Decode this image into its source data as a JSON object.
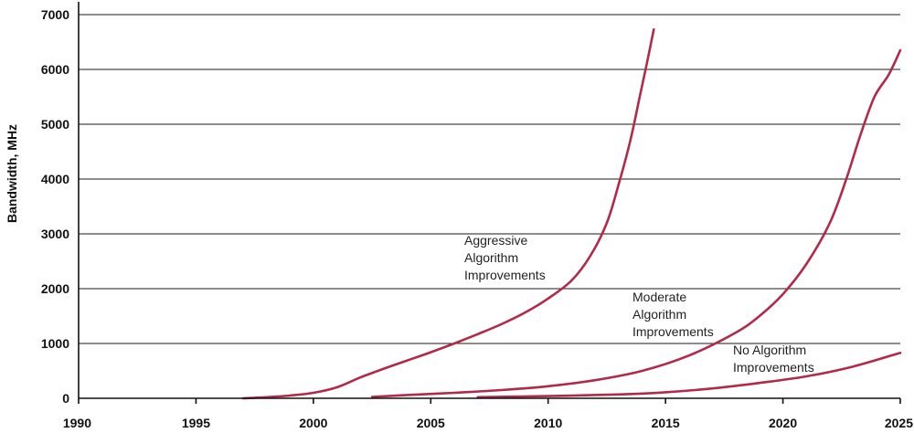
{
  "chart_data": {
    "type": "line",
    "ylabel": "Bandwidth, MHz",
    "xlim": [
      1990,
      2025
    ],
    "ylim": [
      0,
      7000
    ],
    "x_ticks": [
      "1990",
      "1995",
      "2000",
      "2005",
      "2010",
      "2015",
      "2020",
      "2025"
    ],
    "y_ticks": [
      "0",
      "1000",
      "2000",
      "3000",
      "4000",
      "5000",
      "6000",
      "7000"
    ],
    "grid": true,
    "line_color": "#b22a4a",
    "series": [
      {
        "name": "Aggressive Algorithm Improvements",
        "label_lines": [
          "Aggressive",
          "Algorithm",
          "Improvements"
        ],
        "x": [
          1997.0,
          1998.0,
          1999.0,
          2000.0,
          2001.0,
          2002.0,
          2003.0,
          2004.0,
          2005.0,
          2006.0,
          2007.0,
          2008.0,
          2009.0,
          2010.0,
          2011.0,
          2011.8,
          2012.5,
          2013.0,
          2013.5,
          2013.9,
          2014.2,
          2014.5
        ],
        "y": [
          0,
          20,
          50,
          100,
          200,
          380,
          540,
          690,
          840,
          1000,
          1170,
          1350,
          1560,
          1820,
          2150,
          2600,
          3200,
          3900,
          4700,
          5500,
          6100,
          6730
        ]
      },
      {
        "name": "Moderate Algorithm Improvements",
        "label_lines": [
          "Moderate",
          "Algorithm",
          "Improvements"
        ],
        "x": [
          2002.5,
          2004.0,
          2006.0,
          2008.0,
          2010.0,
          2012.0,
          2014.0,
          2016.0,
          2018.0,
          2019.0,
          2020.0,
          2021.0,
          2022.0,
          2022.7,
          2023.3,
          2023.9,
          2024.5,
          2025.0
        ],
        "y": [
          25,
          60,
          100,
          150,
          220,
          330,
          500,
          780,
          1200,
          1500,
          1900,
          2450,
          3200,
          4000,
          4800,
          5500,
          5900,
          6350
        ]
      },
      {
        "name": "No Algorithm Improvements",
        "label_lines": [
          "No Algorithm",
          "Improvements"
        ],
        "x": [
          2007.0,
          2010.0,
          2013.0,
          2015.0,
          2017.0,
          2019.0,
          2021.0,
          2023.0,
          2025.0
        ],
        "y": [
          20,
          40,
          70,
          110,
          180,
          280,
          400,
          580,
          830
        ]
      }
    ]
  }
}
